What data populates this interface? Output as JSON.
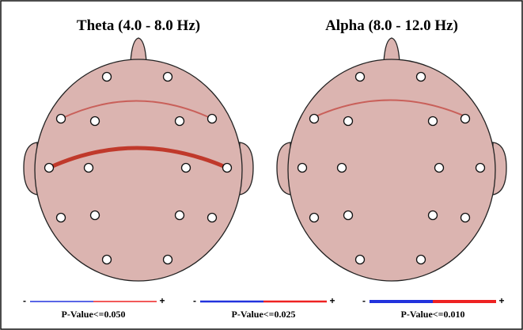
{
  "panels": [
    {
      "title": "Theta (4.0 - 8.0 Hz)"
    },
    {
      "title": "Alpha (8.0 - 12.0 Hz)"
    }
  ],
  "legends": [
    {
      "min_label": "-",
      "max_label": "+",
      "label": "P-Value<=0.050"
    },
    {
      "min_label": "-",
      "max_label": "+",
      "label": "P-Value<=0.025"
    },
    {
      "min_label": "-",
      "max_label": "+",
      "label": "P-Value<=0.010"
    }
  ]
}
